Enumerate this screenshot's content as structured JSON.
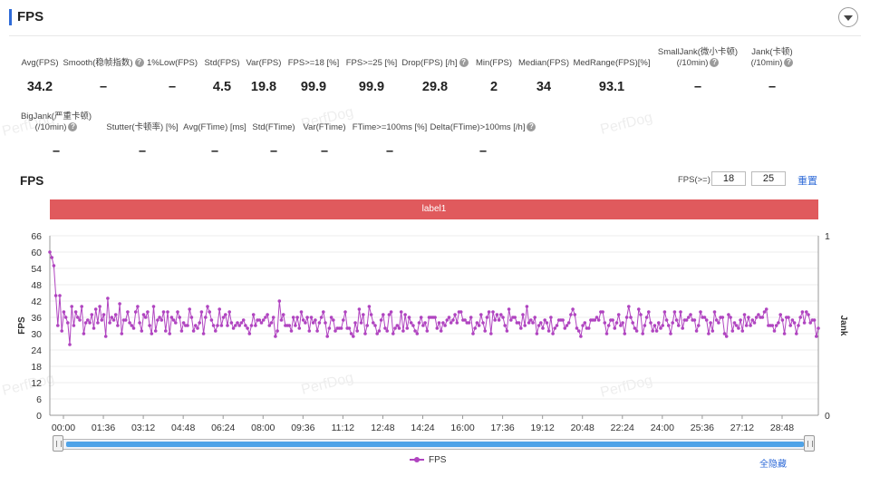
{
  "header": {
    "title": "FPS"
  },
  "metrics_row1": [
    {
      "label": "Avg(FPS)",
      "value": "34.2",
      "help": false
    },
    {
      "label": "Smooth(稳帧指数)",
      "value": "–",
      "help": true
    },
    {
      "label": "1%Low(FPS)",
      "value": "–",
      "help": false
    },
    {
      "label": "Std(FPS)",
      "value": "4.5",
      "help": false
    },
    {
      "label": "Var(FPS)",
      "value": "19.8",
      "help": false
    },
    {
      "label": "FPS>=18 [%]",
      "value": "99.9",
      "help": false
    },
    {
      "label": "FPS>=25 [%]",
      "value": "99.9",
      "help": false
    },
    {
      "label": "Drop(FPS) [/h]",
      "value": "29.8",
      "help": true
    },
    {
      "label": "Min(FPS)",
      "value": "2",
      "help": false
    },
    {
      "label": "Median(FPS)",
      "value": "34",
      "help": false
    },
    {
      "label": "MedRange(FPS)[%]",
      "value": "93.1",
      "help": false
    },
    {
      "label": "SmallJank(微小卡顿)",
      "label2": "(/10min)",
      "value": "–",
      "help": true
    },
    {
      "label": "Jank(卡顿)",
      "label2": "(/10min)",
      "value": "–",
      "help": true
    }
  ],
  "metrics_row2": [
    {
      "label": "BigJank(严重卡顿)",
      "label2": "(/10min)",
      "value": "–",
      "help": true
    },
    {
      "label": "Stutter(卡顿率) [%]",
      "value": "–",
      "help": false
    },
    {
      "label": "Avg(FTime) [ms]",
      "value": "–",
      "help": false
    },
    {
      "label": "Std(FTime)",
      "value": "–",
      "help": false
    },
    {
      "label": "Var(FTime)",
      "value": "–",
      "help": false
    },
    {
      "label": "FTime>=100ms [%]",
      "value": "–",
      "help": false
    },
    {
      "label": "Delta(FTime)>100ms [/h]",
      "value": "–",
      "help": true
    }
  ],
  "help_glyph": "?",
  "controls": {
    "fps_threshold_label": "FPS(>=)",
    "threshold1": "18",
    "threshold2": "25",
    "reset_label": "重置"
  },
  "label_bar": "label1",
  "watermark": "PerfDog",
  "legend": {
    "series": "FPS",
    "hide_all": "全隐藏"
  },
  "colors": {
    "series": "#b044c0",
    "label_bar": "#e05a5d",
    "accent": "#2f6bd8",
    "slider": "#4fa3e8"
  },
  "chart_data": {
    "type": "line",
    "title": "FPS",
    "xlabel": "",
    "ylabel": "FPS",
    "y2label": "Jank",
    "ylim": [
      0,
      66
    ],
    "y2lim": [
      0,
      1
    ],
    "yticks": [
      0,
      6,
      12,
      18,
      24,
      30,
      36,
      42,
      48,
      54,
      60,
      66
    ],
    "y2ticks": [
      0,
      1
    ],
    "xticks": [
      "00:00",
      "01:36",
      "03:12",
      "04:48",
      "06:24",
      "08:00",
      "09:36",
      "11:12",
      "12:48",
      "14:24",
      "16:00",
      "17:36",
      "19:12",
      "20:48",
      "22:24",
      "24:00",
      "25:36",
      "27:12",
      "28:48"
    ],
    "xlim_seconds": [
      0,
      1800
    ],
    "sample_interval_seconds": 5,
    "grid": true,
    "legend_position": "bottom-center",
    "series": [
      {
        "name": "FPS",
        "values": [
          60,
          58,
          55,
          44,
          33,
          44,
          31,
          38,
          36,
          34,
          26,
          40,
          33,
          38,
          36,
          35,
          40,
          30,
          34,
          35,
          34,
          37,
          32,
          39,
          34,
          40,
          35,
          37,
          29,
          43,
          34,
          36,
          35,
          37,
          33,
          41,
          30,
          35,
          35,
          38,
          34,
          33,
          32,
          38,
          40,
          34,
          31,
          37,
          36,
          38,
          33,
          30,
          40,
          31,
          35,
          36,
          35,
          38,
          31,
          38,
          30,
          36,
          35,
          34,
          38,
          36,
          31,
          34,
          33,
          33,
          39,
          36,
          31,
          33,
          32,
          34,
          38,
          30,
          36,
          40,
          38,
          35,
          33,
          31,
          33,
          39,
          33,
          36,
          37,
          33,
          38,
          34,
          32,
          33,
          34,
          33,
          34,
          35,
          33,
          32,
          30,
          33,
          37,
          33,
          35,
          35,
          34,
          35,
          36,
          37,
          33,
          34,
          36,
          29,
          31,
          42,
          35,
          37,
          33,
          33,
          33,
          31,
          36,
          33,
          36,
          32,
          38,
          35,
          34,
          36,
          31,
          36,
          34,
          35,
          31,
          34,
          36,
          38,
          34,
          29,
          32,
          36,
          35,
          31,
          32,
          32,
          32,
          35,
          38,
          32,
          32,
          30,
          29,
          34,
          31,
          39,
          34,
          37,
          30,
          33,
          40,
          37,
          34,
          33,
          30,
          31,
          35,
          37,
          32,
          31,
          37,
          38,
          30,
          32,
          33,
          32,
          38,
          31,
          37,
          32,
          36,
          34,
          33,
          31,
          30,
          34,
          36,
          33,
          34,
          31,
          36,
          36,
          36,
          36,
          32,
          34,
          31,
          34,
          33,
          35,
          36,
          34,
          35,
          37,
          34,
          38,
          38,
          35,
          35,
          34,
          34,
          36,
          30,
          32,
          34,
          33,
          37,
          34,
          31,
          36,
          38,
          30,
          38,
          35,
          37,
          35,
          37,
          36,
          33,
          31,
          39,
          35,
          36,
          36,
          34,
          34,
          32,
          37,
          33,
          40,
          34,
          35,
          34,
          36,
          30,
          33,
          34,
          32,
          35,
          34,
          31,
          36,
          30,
          32,
          33,
          35,
          35,
          35,
          32,
          33,
          34,
          37,
          39,
          37,
          32,
          31,
          29,
          33,
          34,
          32,
          32,
          35,
          35,
          35,
          36,
          35,
          38,
          38,
          34,
          30,
          33,
          35,
          35,
          32,
          34,
          37,
          33,
          34,
          30,
          36,
          40,
          36,
          34,
          32,
          31,
          39,
          37,
          30,
          33,
          36,
          38,
          34,
          31,
          33,
          31,
          34,
          32,
          33,
          38,
          35,
          33,
          30,
          34,
          38,
          35,
          33,
          38,
          32,
          35,
          35,
          36,
          37,
          35,
          35,
          31,
          33,
          38,
          36,
          36,
          35,
          30,
          34,
          31,
          38,
          35,
          34,
          36,
          36,
          30,
          29,
          37,
          36,
          31,
          34,
          33,
          32,
          35,
          31,
          37,
          33,
          36,
          33,
          35,
          34,
          36,
          37,
          36,
          36,
          38,
          39,
          33,
          33,
          33,
          31,
          33,
          34,
          37,
          35,
          30,
          36,
          36,
          33,
          35,
          34,
          30,
          33,
          36,
          38,
          34,
          38,
          37,
          34,
          35,
          35,
          29,
          32
        ]
      }
    ]
  }
}
